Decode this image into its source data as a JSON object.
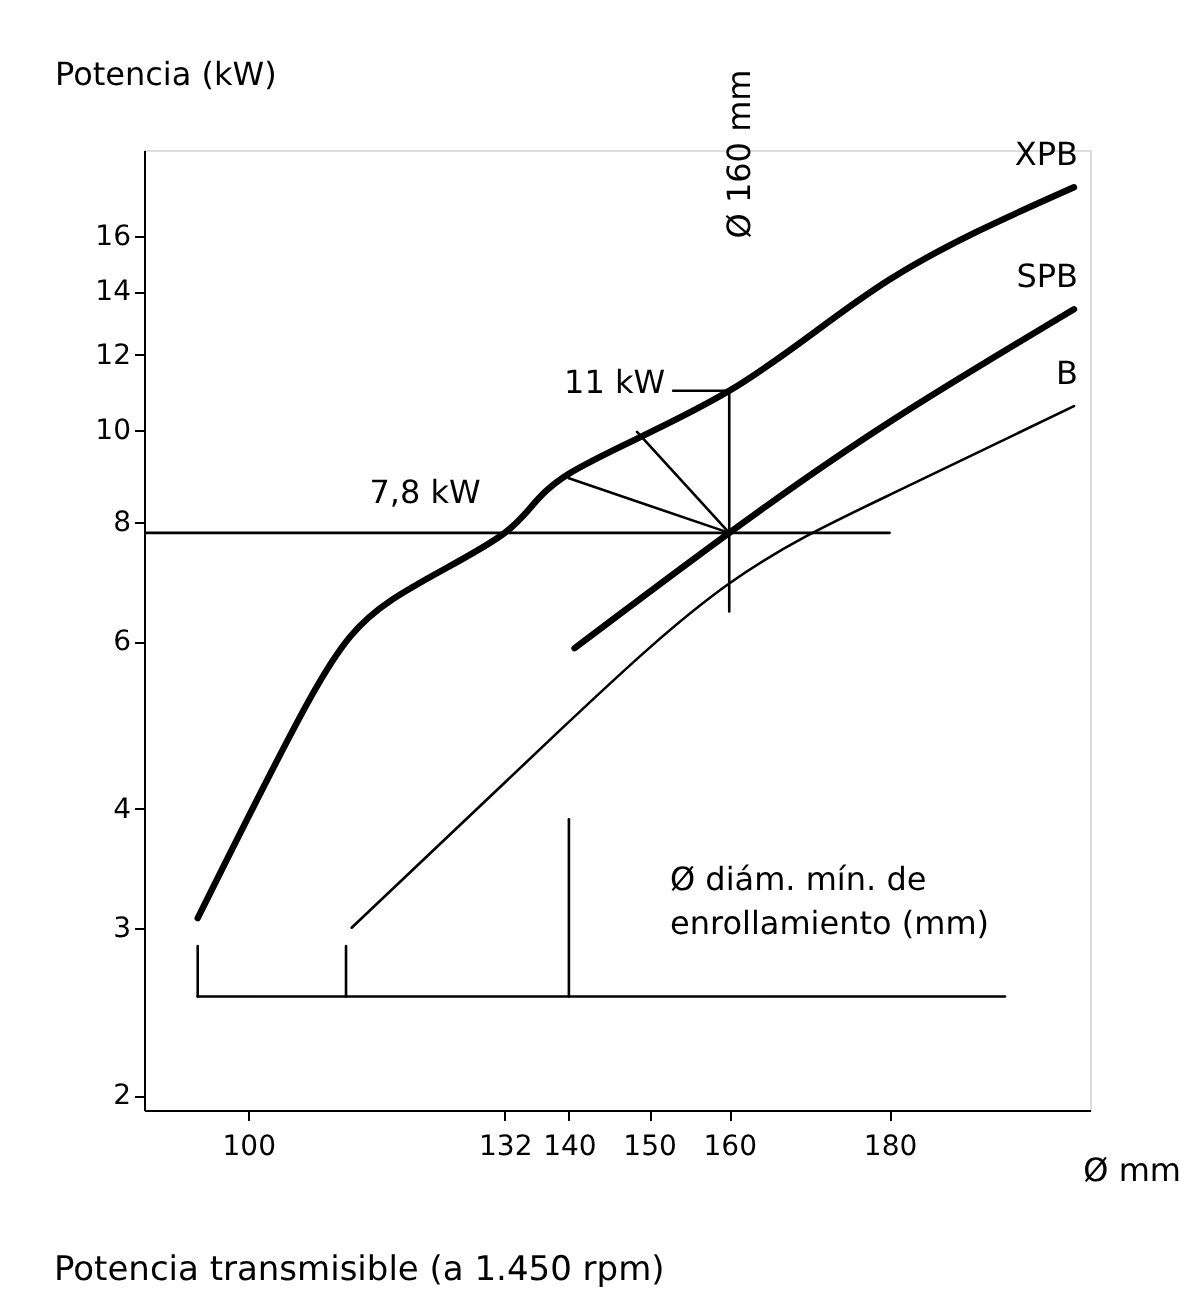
{
  "chart_data": {
    "type": "line",
    "xlabel": "Ø mm",
    "ylabel": "Potencia (kW)",
    "log": "y",
    "grid": false,
    "marker": "none",
    "line_style": "solid",
    "xlim": [
      87,
      205
    ],
    "xticks": [
      100,
      132,
      140,
      150,
      160,
      180
    ],
    "ylim": [
      1.93,
      19.7
    ],
    "yticks": [
      2,
      3,
      4,
      6,
      8,
      10,
      12,
      14,
      16
    ],
    "series": [
      {
        "name": "XPB",
        "color": "#000000",
        "x": [
          93.7,
          107.8,
          118,
          132,
          140,
          160,
          180,
          203
        ],
        "values": [
          3.07,
          5.24,
          6.64,
          7.8,
          9.0,
          11,
          14.4,
          18
        ]
      },
      {
        "name": "SPB",
        "color": "#000000",
        "x": [
          140.7,
          160,
          180,
          203
        ],
        "values": [
          5.9,
          7.8,
          10.2,
          13.4
        ]
      },
      {
        "name": "B",
        "color": "#000000",
        "x": [
          112.9,
          138.8,
          160,
          180,
          203
        ],
        "values": [
          3.0,
          4.83,
          6.9,
          8.55,
          10.6
        ]
      },
      {
        "color": "#000000",
        "x": [
          87,
          180
        ],
        "values": [
          7.8,
          7.8
        ]
      },
      {
        "color": "#000000",
        "x": [
          160,
          160
        ],
        "values": [
          6.45,
          11
        ]
      },
      {
        "color": "#000000",
        "x": [
          153,
          160
        ],
        "values": [
          11,
          11
        ]
      },
      {
        "color": "#000000",
        "x": [
          160,
          140
        ],
        "values": [
          7.8,
          8.9
        ]
      },
      {
        "color": "#000000",
        "x": [
          160,
          148.5
        ],
        "values": [
          7.8,
          9.96
        ]
      },
      {
        "color": "#000000",
        "x": [
          93.7,
          194.4
        ],
        "values": [
          2.54,
          2.54
        ]
      },
      {
        "color": "#000000",
        "x": [
          93.7,
          93.7
        ],
        "values": [
          2.54,
          2.87
        ]
      },
      {
        "color": "#000000",
        "x": [
          112.2,
          112.2
        ],
        "values": [
          2.54,
          2.87
        ]
      },
      {
        "color": "#000000",
        "x": [
          140,
          140
        ],
        "values": [
          2.54,
          3.9
        ]
      }
    ],
    "annotations": [
      {
        "text": "11 kW",
        "x": 153,
        "y": 11
      },
      {
        "text": "7,8 kW",
        "x": 132,
        "y": 7.8
      },
      "Ø 160 mm",
      "Ø diám. mín. de\nenrollamiento (mm)",
      "Potencia transmisible (a 1.450 rpm)"
    ]
  }
}
